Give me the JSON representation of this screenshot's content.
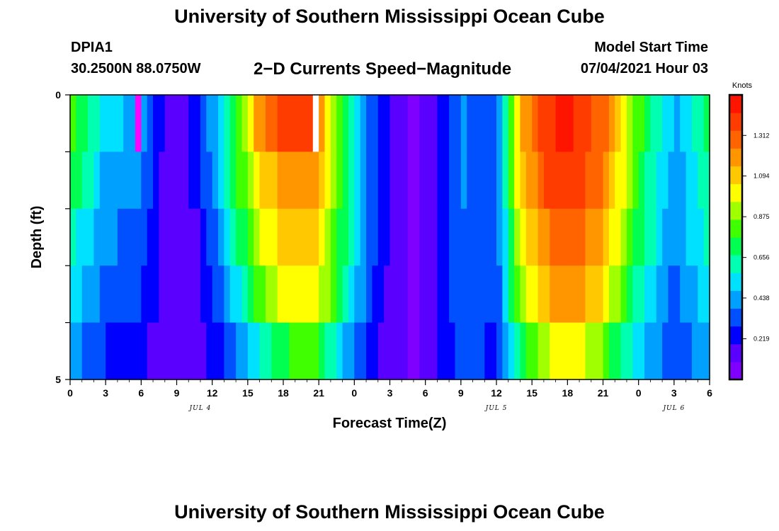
{
  "header": {
    "title": "University of Southern Mississippi Ocean Cube",
    "station_id": "DPIA1",
    "coords": "30.2500N  88.0750W",
    "chart_title": "2−D Currents Speed−Magnitude",
    "start_label": "Model Start Time",
    "start_value": "07/04/2021 Hour 03"
  },
  "footer": {
    "title": "University of Southern Mississippi Ocean Cube"
  },
  "chart_data": {
    "type": "heatmap",
    "title": "2−D Currents Speed−Magnitude",
    "xlabel": "Forecast Time(Z)",
    "ylabel": "Depth (ft)",
    "x_hours": [
      0,
      54
    ],
    "x_tick_labels": [
      "0",
      "3",
      "6",
      "9",
      "12",
      "15",
      "18",
      "21",
      "0",
      "3",
      "6",
      "9",
      "12",
      "15",
      "18",
      "21",
      "0",
      "3",
      "6"
    ],
    "y_range": [
      0,
      5
    ],
    "y_tick_labels": [
      "0",
      "5"
    ],
    "date_labels": [
      {
        "label": "JUL 4",
        "hour": 11
      },
      {
        "label": "JUL 5",
        "hour": 36
      },
      {
        "label": "JUL 6",
        "hour": 51
      }
    ],
    "colorbar": {
      "title": "Knots",
      "range": [
        0,
        1.53
      ],
      "ticks": [
        "0.219",
        "0.438",
        "0.656",
        "0.875",
        "1.094",
        "1.312"
      ],
      "colors": [
        "#8000ff",
        "#5a00ff",
        "#0000ff",
        "#0050ff",
        "#00a0ff",
        "#00e0ff",
        "#00ffb0",
        "#00ff50",
        "#40ff00",
        "#a0ff00",
        "#ffff00",
        "#ffc800",
        "#ff9600",
        "#ff6400",
        "#ff3c00",
        "#ff1400"
      ]
    },
    "depth_layers": 5,
    "anchor_hours": [
      0,
      3,
      6,
      8.5,
      11,
      13.5,
      16,
      18,
      20.5,
      22.5,
      24,
      26,
      29,
      31,
      33,
      36,
      38,
      40.5,
      42,
      45,
      48,
      51,
      54
    ],
    "layers": [
      [
        0.8,
        0.5,
        0.45,
        0.1,
        0.25,
        0.7,
        1.2,
        1.42,
        1.35,
        0.85,
        0.6,
        0.25,
        0.08,
        0.2,
        0.4,
        0.3,
        1.15,
        1.42,
        1.45,
        1.3,
        0.8,
        0.45,
        0.72
      ],
      [
        0.75,
        0.45,
        0.4,
        0.1,
        0.25,
        0.65,
        1.05,
        1.2,
        1.2,
        0.85,
        0.6,
        0.25,
        0.08,
        0.2,
        0.4,
        0.3,
        1.1,
        1.38,
        1.42,
        1.25,
        0.75,
        0.4,
        0.68
      ],
      [
        0.6,
        0.4,
        0.35,
        0.1,
        0.2,
        0.55,
        0.95,
        1.1,
        1.1,
        0.8,
        0.55,
        0.25,
        0.08,
        0.2,
        0.38,
        0.3,
        1.0,
        1.25,
        1.32,
        1.15,
        0.7,
        0.4,
        0.62
      ],
      [
        0.55,
        0.35,
        0.3,
        0.1,
        0.18,
        0.45,
        0.8,
        1.0,
        1.05,
        0.75,
        0.5,
        0.22,
        0.08,
        0.2,
        0.35,
        0.3,
        0.9,
        1.15,
        1.22,
        1.05,
        0.6,
        0.35,
        0.55
      ],
      [
        0.42,
        0.28,
        0.22,
        0.1,
        0.15,
        0.32,
        0.6,
        0.75,
        0.85,
        0.55,
        0.4,
        0.2,
        0.08,
        0.2,
        0.3,
        0.28,
        0.7,
        0.95,
        1.05,
        0.85,
        0.5,
        0.3,
        0.45
      ]
    ],
    "missing_cells": [
      {
        "hour": 20.5,
        "layer": 0,
        "color": "#ffffff"
      },
      {
        "hour": 5.5,
        "layer": 0,
        "color": "#ff00ff"
      }
    ]
  }
}
